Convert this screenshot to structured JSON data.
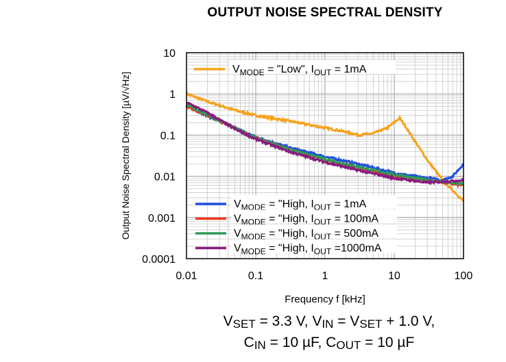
{
  "chart_data": {
    "type": "line",
    "title": "OUTPUT NOISE SPECTRAL DENSITY",
    "xlabel": "Frequency f [kHz]",
    "ylabel": "Output Noise Spectral Density [µV/√Hz]",
    "xscale": "log",
    "yscale": "log",
    "xlim": [
      0.01,
      100
    ],
    "ylim": [
      0.0001,
      10
    ],
    "xticks": [
      "0.01",
      "0.1",
      "1",
      "10",
      "100"
    ],
    "yticks": [
      "10",
      "1",
      "0.1",
      "0.01",
      "0.001",
      "0.0001"
    ],
    "grid": true,
    "series": [
      {
        "name": "VMODE = \"Low\", IOUT = 1mA",
        "label": {
          "v": "V",
          "vsub": "MODE",
          "mid": " = \"Low\", I",
          "isub": "OUT",
          "cur": " =    1mA"
        },
        "color": "#f7a21b",
        "x": [
          0.01,
          0.02,
          0.05,
          0.1,
          0.3,
          1,
          2,
          3,
          5,
          8,
          12,
          15,
          20,
          30,
          50,
          100
        ],
        "y": [
          1.0,
          0.65,
          0.4,
          0.3,
          0.22,
          0.15,
          0.12,
          0.1,
          0.11,
          0.15,
          0.26,
          0.15,
          0.07,
          0.025,
          0.008,
          0.0025
        ]
      },
      {
        "name": "VMODE = \"High, IOUT = 1mA",
        "label": {
          "v": "V",
          "vsub": "MODE",
          "mid": " = \"High, I",
          "isub": "OUT",
          "cur": " =       1mA"
        },
        "color": "#1f4fe0",
        "x": [
          0.01,
          0.05,
          0.1,
          0.3,
          1,
          3,
          10,
          30,
          50,
          70,
          100
        ],
        "y": [
          0.5,
          0.15,
          0.09,
          0.05,
          0.03,
          0.02,
          0.012,
          0.009,
          0.008,
          0.01,
          0.02
        ]
      },
      {
        "name": "VMODE = \"High, IOUT = 100mA",
        "label": {
          "v": "V",
          "vsub": "MODE",
          "mid": " = \"High, I",
          "isub": "OUT",
          "cur": " =  100mA"
        },
        "color": "#ee3a1c",
        "x": [
          0.01,
          0.05,
          0.1,
          0.3,
          1,
          3,
          10,
          30,
          100
        ],
        "y": [
          0.5,
          0.15,
          0.085,
          0.045,
          0.025,
          0.016,
          0.01,
          0.008,
          0.006
        ]
      },
      {
        "name": "VMODE = \"High, IOUT = 500mA",
        "label": {
          "v": "V",
          "vsub": "MODE",
          "mid": " = \"High, I",
          "isub": "OUT",
          "cur": " =  500mA"
        },
        "color": "#2e9b5a",
        "x": [
          0.01,
          0.05,
          0.1,
          0.3,
          1,
          3,
          10,
          30,
          100
        ],
        "y": [
          0.55,
          0.15,
          0.085,
          0.045,
          0.026,
          0.017,
          0.011,
          0.008,
          0.0065
        ]
      },
      {
        "name": "VMODE = \"High, IOUT =1000mA",
        "label": {
          "v": "V",
          "vsub": "MODE",
          "mid": " = \"High, I",
          "isub": "OUT",
          "cur": " =1000mA"
        },
        "color": "#8a1a7e",
        "x": [
          0.01,
          0.02,
          0.05,
          0.1,
          0.3,
          1,
          3,
          10,
          30,
          100
        ],
        "y": [
          0.62,
          0.35,
          0.14,
          0.08,
          0.04,
          0.022,
          0.014,
          0.009,
          0.007,
          0.008
        ]
      }
    ]
  },
  "caption": {
    "line1": [
      {
        "t": "V"
      },
      {
        "s": "SET"
      },
      {
        "t": " = 3.3 V, V"
      },
      {
        "s": "IN"
      },
      {
        "t": " = V"
      },
      {
        "s": "SET"
      },
      {
        "t": " + 1.0 V,"
      }
    ],
    "line2": [
      {
        "t": "C"
      },
      {
        "s": "IN"
      },
      {
        "t": " = 10 µF, C"
      },
      {
        "s": "OUT"
      },
      {
        "t": " = 10 µF"
      }
    ]
  }
}
